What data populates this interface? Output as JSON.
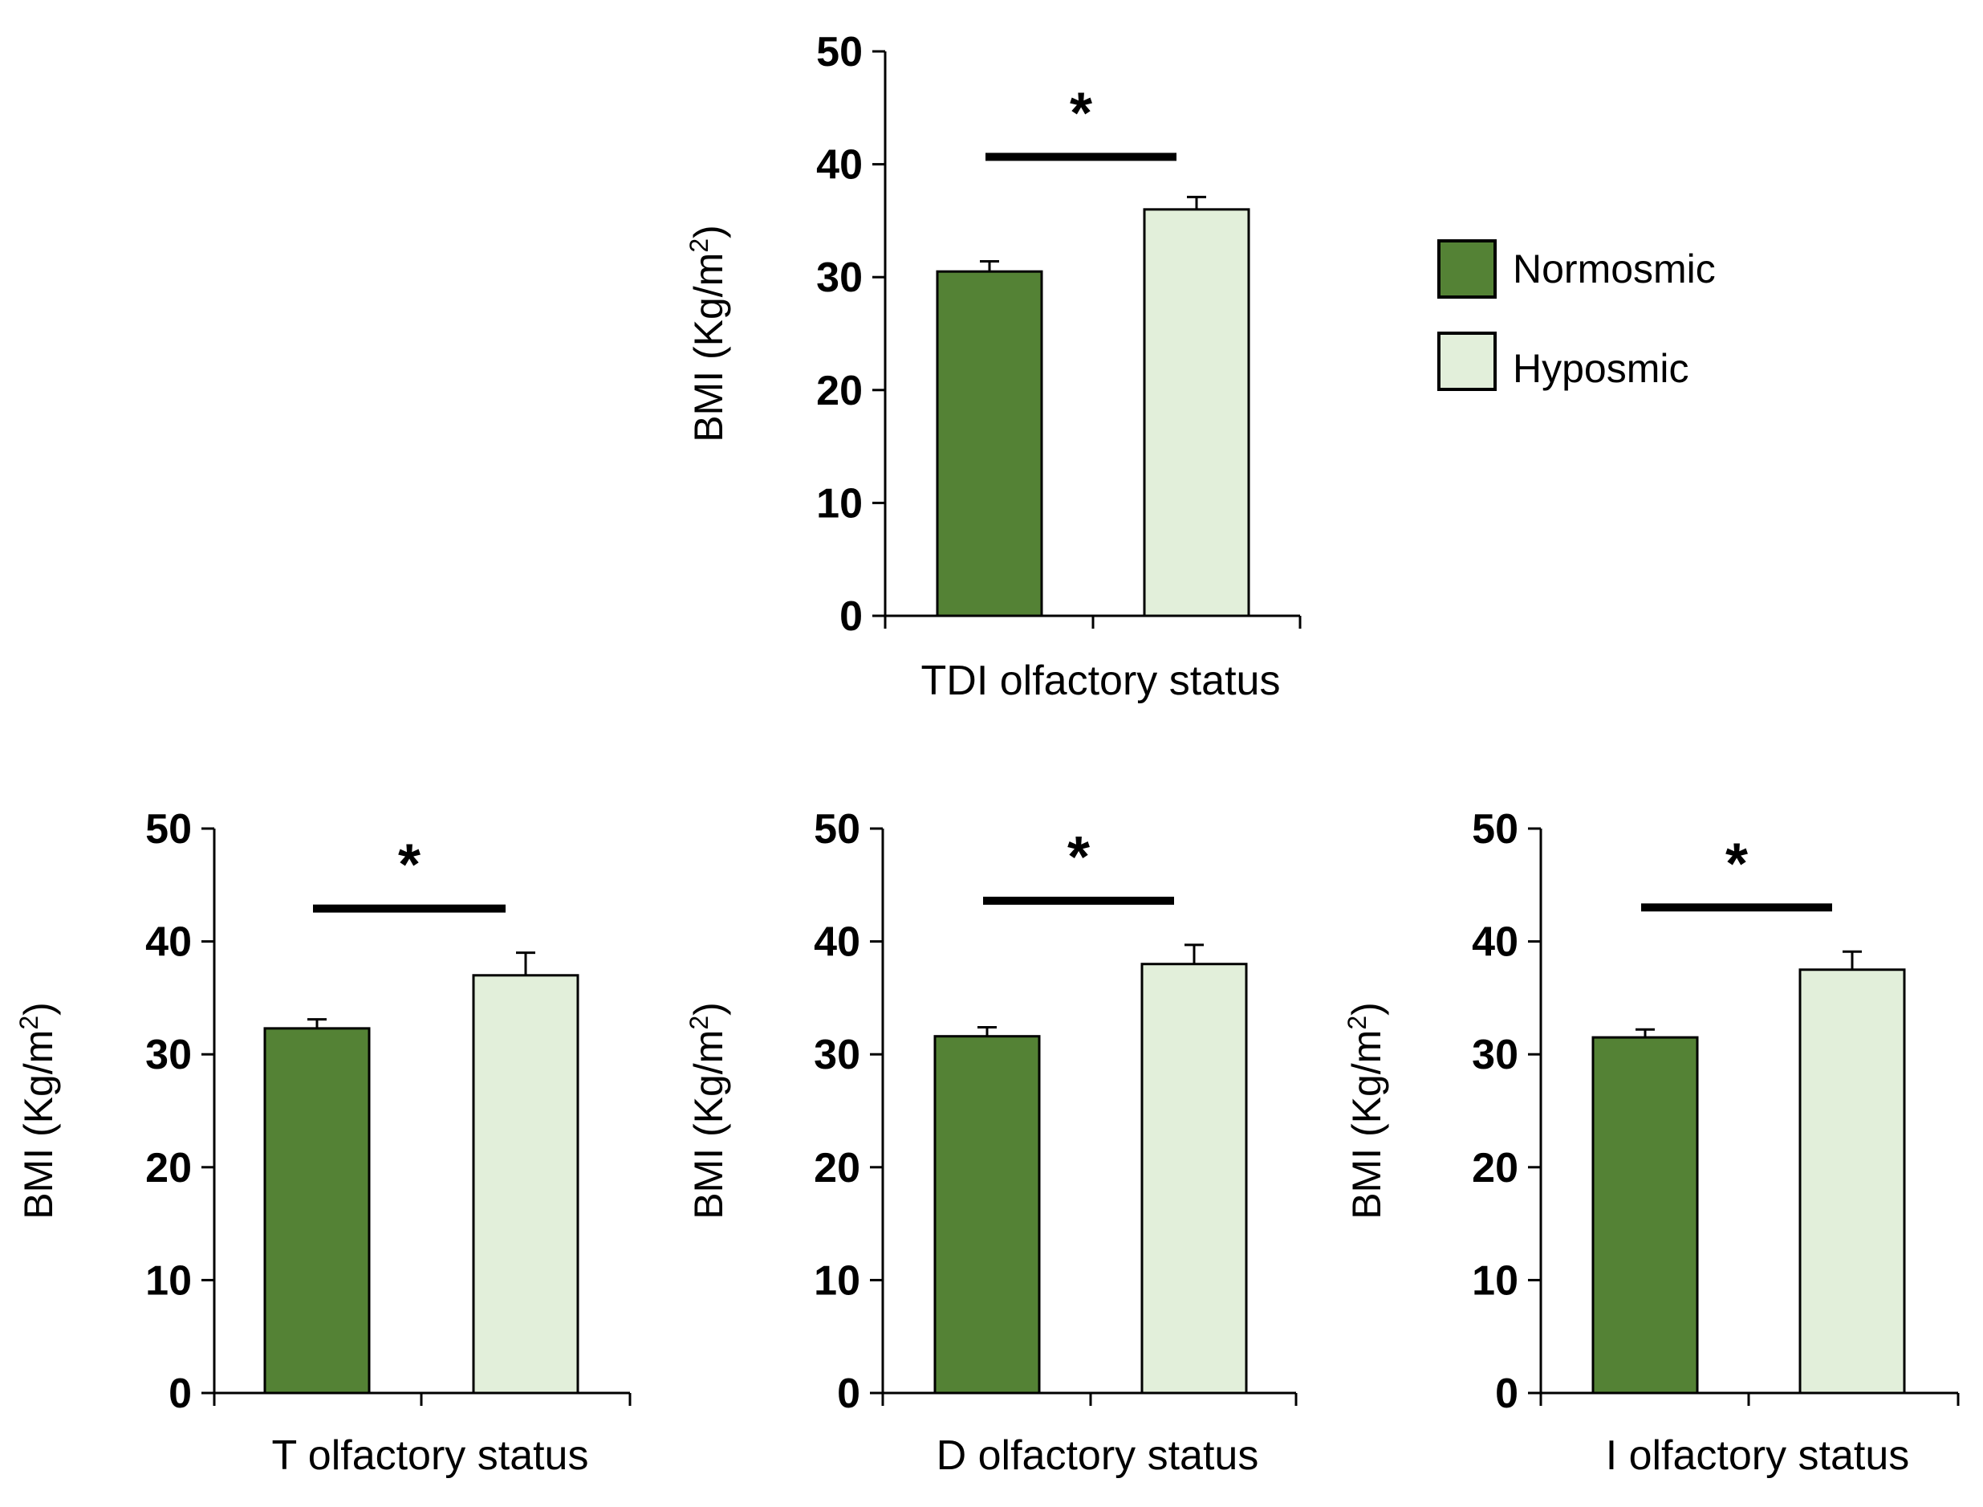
{
  "chart_data": [
    {
      "type": "bar",
      "categories": [
        "Normosmic",
        "Hyposmic"
      ],
      "values": [
        30.5,
        36.0
      ],
      "errors": [
        0.9,
        1.1
      ],
      "significance": "*",
      "xlabel": "TDI olfactory status",
      "ylabel": "BMI (Kg/m",
      "ylabel_sup": "2",
      "ylabel_end": ")",
      "ylim": [
        0,
        50
      ],
      "yticks": [
        "0",
        "10",
        "20",
        "30",
        "40",
        "50"
      ]
    },
    {
      "type": "bar",
      "categories": [
        "Normosmic",
        "Hyposmic"
      ],
      "values": [
        32.3,
        37.0
      ],
      "errors": [
        0.8,
        2.0
      ],
      "significance": "*",
      "xlabel": "T olfactory status",
      "ylabel": "BMI (Kg/m",
      "ylabel_sup": "2",
      "ylabel_end": ")",
      "ylim": [
        0,
        50
      ],
      "yticks": [
        "0",
        "10",
        "20",
        "30",
        "40",
        "50"
      ]
    },
    {
      "type": "bar",
      "categories": [
        "Normosmic",
        "Hyposmic"
      ],
      "values": [
        31.6,
        38.0
      ],
      "errors": [
        0.8,
        1.7
      ],
      "significance": "*",
      "xlabel": "D olfactory status",
      "ylabel": "BMI (Kg/m",
      "ylabel_sup": "2",
      "ylabel_end": ")",
      "ylim": [
        0,
        50
      ],
      "yticks": [
        "0",
        "10",
        "20",
        "30",
        "40",
        "50"
      ]
    },
    {
      "type": "bar",
      "categories": [
        "Normosmic",
        "Hyposmic"
      ],
      "values": [
        31.5,
        37.5
      ],
      "errors": [
        0.7,
        1.6
      ],
      "significance": "*",
      "xlabel": "I olfactory status",
      "ylabel": "BMI (Kg/m",
      "ylabel_sup": "2",
      "ylabel_end": ")",
      "ylim": [
        0,
        50
      ],
      "yticks": [
        "0",
        "10",
        "20",
        "30",
        "40",
        "50"
      ]
    }
  ],
  "legend": {
    "items": [
      {
        "label": "Normosmic",
        "color": "#548235"
      },
      {
        "label": "Hyposmic",
        "color": "#e2efda"
      }
    ]
  },
  "colors": {
    "normosmic": "#548235",
    "hyposmic": "#e2efda",
    "axis": "#000000"
  }
}
